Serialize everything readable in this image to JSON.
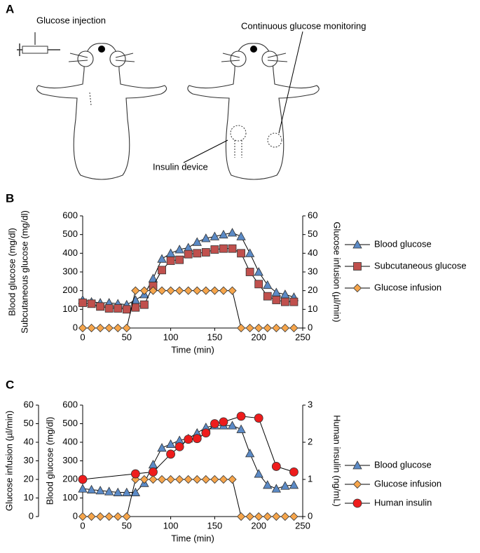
{
  "panel_labels": [
    "A",
    "B",
    "C"
  ],
  "diagram": {
    "labels": [
      "Glucose injection",
      "Continuous glucose monitoring",
      "Insulin device"
    ]
  },
  "chart_data": [
    {
      "type": "line",
      "xlabel": "Time (min)",
      "ylabel": [
        "Blood glucose (mg/dl)",
        "Subcutaneous glucose (mg/dl)"
      ],
      "y2label": "Glucose infusion (µl/min)",
      "xlim": [
        0,
        250
      ],
      "xticks": [
        0,
        50,
        100,
        150,
        200,
        250
      ],
      "ylim": [
        0,
        600
      ],
      "yticks": [
        0,
        100,
        200,
        300,
        400,
        500,
        600
      ],
      "y2lim": [
        0,
        60
      ],
      "y2ticks": [
        0,
        10,
        20,
        30,
        40,
        50,
        60
      ],
      "series": [
        {
          "name": "Blood glucose",
          "color": "#5b8ac6",
          "marker": "triangle",
          "x": [
            0,
            10,
            20,
            30,
            40,
            50,
            60,
            70,
            80,
            90,
            100,
            110,
            120,
            130,
            140,
            150,
            160,
            170,
            180,
            190,
            200,
            210,
            220,
            230,
            240
          ],
          "values": [
            150,
            140,
            135,
            135,
            130,
            125,
            150,
            180,
            265,
            370,
            400,
            420,
            430,
            460,
            480,
            490,
            500,
            510,
            490,
            400,
            300,
            230,
            190,
            180,
            165
          ]
        },
        {
          "name": "Subcutaneous glucose",
          "color": "#c0504d",
          "marker": "square",
          "x": [
            0,
            10,
            20,
            30,
            40,
            50,
            60,
            70,
            80,
            90,
            100,
            110,
            120,
            130,
            140,
            150,
            160,
            170,
            180,
            190,
            200,
            210,
            220,
            230,
            240
          ],
          "values": [
            135,
            130,
            115,
            105,
            105,
            100,
            110,
            125,
            225,
            310,
            360,
            365,
            395,
            400,
            405,
            420,
            425,
            425,
            400,
            300,
            235,
            170,
            150,
            140,
            140
          ]
        },
        {
          "name": "Glucose infusion",
          "color": "#f6a54b",
          "marker": "diamond",
          "axis": "y2",
          "x": [
            0,
            10,
            20,
            30,
            40,
            50,
            60,
            70,
            80,
            90,
            100,
            110,
            120,
            130,
            140,
            150,
            160,
            170,
            180,
            190,
            200,
            210,
            220,
            230,
            240
          ],
          "values": [
            0,
            0,
            0,
            0,
            0,
            0,
            20,
            20,
            20,
            20,
            20,
            20,
            20,
            20,
            20,
            20,
            20,
            20,
            0,
            0,
            0,
            0,
            0,
            0,
            0
          ]
        }
      ]
    },
    {
      "type": "line",
      "xlabel": "Time (min)",
      "ylabel": [
        "Blood glucose (mg/dl)"
      ],
      "y2label": "Human insulin (ng/mL)",
      "y3label": "Glucose infusion (µl/min)",
      "xlim": [
        0,
        250
      ],
      "xticks": [
        0,
        50,
        100,
        150,
        200,
        250
      ],
      "ylim": [
        0,
        600
      ],
      "yticks": [
        0,
        100,
        200,
        300,
        400,
        500,
        600
      ],
      "y2lim": [
        0,
        3
      ],
      "y2ticks": [
        0,
        1,
        2,
        3
      ],
      "y3lim": [
        0,
        60
      ],
      "y3ticks": [
        0,
        10,
        20,
        30,
        40,
        50,
        60
      ],
      "series": [
        {
          "name": "Blood glucose",
          "color": "#5b8ac6",
          "marker": "triangle",
          "x": [
            0,
            10,
            20,
            30,
            40,
            50,
            60,
            70,
            80,
            90,
            100,
            110,
            120,
            130,
            140,
            150,
            160,
            170,
            180,
            190,
            200,
            210,
            220,
            230,
            240
          ],
          "values": [
            150,
            145,
            140,
            135,
            130,
            130,
            130,
            180,
            280,
            370,
            390,
            410,
            420,
            450,
            480,
            490,
            490,
            490,
            470,
            340,
            230,
            170,
            150,
            165,
            170
          ]
        },
        {
          "name": "Glucose infusion",
          "color": "#f6a54b",
          "marker": "diamond",
          "axis": "y3",
          "x": [
            0,
            10,
            20,
            30,
            40,
            50,
            60,
            70,
            80,
            90,
            100,
            110,
            120,
            130,
            140,
            150,
            160,
            170,
            180,
            190,
            200,
            210,
            220,
            230,
            240
          ],
          "values": [
            0,
            0,
            0,
            0,
            0,
            0,
            20,
            20,
            20,
            20,
            20,
            20,
            20,
            20,
            20,
            20,
            20,
            20,
            0,
            0,
            0,
            0,
            0,
            0,
            0
          ]
        },
        {
          "name": "Human insulin",
          "color": "#ee1c1c",
          "marker": "circle",
          "axis": "y2",
          "x": [
            0,
            60,
            80,
            100,
            110,
            120,
            130,
            140,
            150,
            160,
            180,
            200,
            220,
            240
          ],
          "values": [
            1.0,
            1.15,
            1.2,
            1.68,
            1.88,
            2.08,
            2.1,
            2.25,
            2.5,
            2.55,
            2.7,
            2.65,
            1.35,
            1.2
          ]
        }
      ]
    }
  ]
}
